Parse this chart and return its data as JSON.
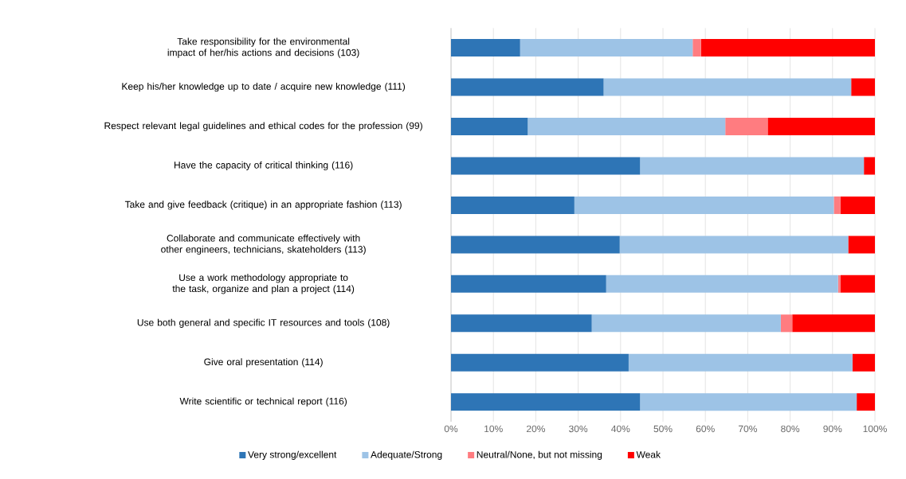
{
  "chart_data": {
    "type": "bar",
    "orientation": "horizontal",
    "stacked": true,
    "categories": [
      "Take responsibility for the environmental impact of her/his actions and decisions (103)",
      "Keep his/her knowledge up to date / acquire new knowledge (111)",
      "Respect relevant legal guidelines and ethical codes for the profession (99)",
      "Have the capacity of critical thinking (116)",
      "Take and give feedback (critique) in an appropriate fashion (113)",
      "Collaborate and communicate effectively with other engineers, technicians, skateholders (113)",
      "Use a work methodology appropriate to the task, organize and plan a project (114)",
      "Use both general and specific IT resources and tools (108)",
      "Give oral presentation (114)",
      "Write scientific or technical report (116)"
    ],
    "series": [
      {
        "name": "Very strong/excellent",
        "color": "#2e75b6",
        "values": [
          16.3,
          36.0,
          18.1,
          44.6,
          29.1,
          39.8,
          36.6,
          33.2,
          41.9,
          44.6
        ]
      },
      {
        "name": "Adequate/Strong",
        "color": "#9dc3e6",
        "values": [
          40.7,
          58.4,
          46.6,
          52.8,
          61.2,
          53.9,
          54.7,
          44.6,
          52.8,
          51.1
        ]
      },
      {
        "name": "Neutral/None, but not missing",
        "color": "#ff7c80",
        "values": [
          2.0,
          0,
          10.0,
          0,
          1.6,
          0,
          0.6,
          2.7,
          0,
          0
        ]
      },
      {
        "name": "Weak",
        "color": "#ff0000",
        "values": [
          41.0,
          5.6,
          25.3,
          2.6,
          8.1,
          6.3,
          8.1,
          19.5,
          5.3,
          4.3
        ]
      }
    ],
    "xlim": [
      0,
      100
    ],
    "xticks": [
      {
        "value": 0,
        "label": "0%"
      },
      {
        "value": 10,
        "label": "10%"
      },
      {
        "value": 20,
        "label": "20%"
      },
      {
        "value": 30,
        "label": "30%"
      },
      {
        "value": 40,
        "label": "40%"
      },
      {
        "value": 50,
        "label": "50%"
      },
      {
        "value": 60,
        "label": "60%"
      },
      {
        "value": 70,
        "label": "70%"
      },
      {
        "value": 80,
        "label": "80%"
      },
      {
        "value": 90,
        "label": "90%"
      },
      {
        "value": 100,
        "label": "100%"
      }
    ],
    "grid": "x",
    "legend": "bottom"
  }
}
